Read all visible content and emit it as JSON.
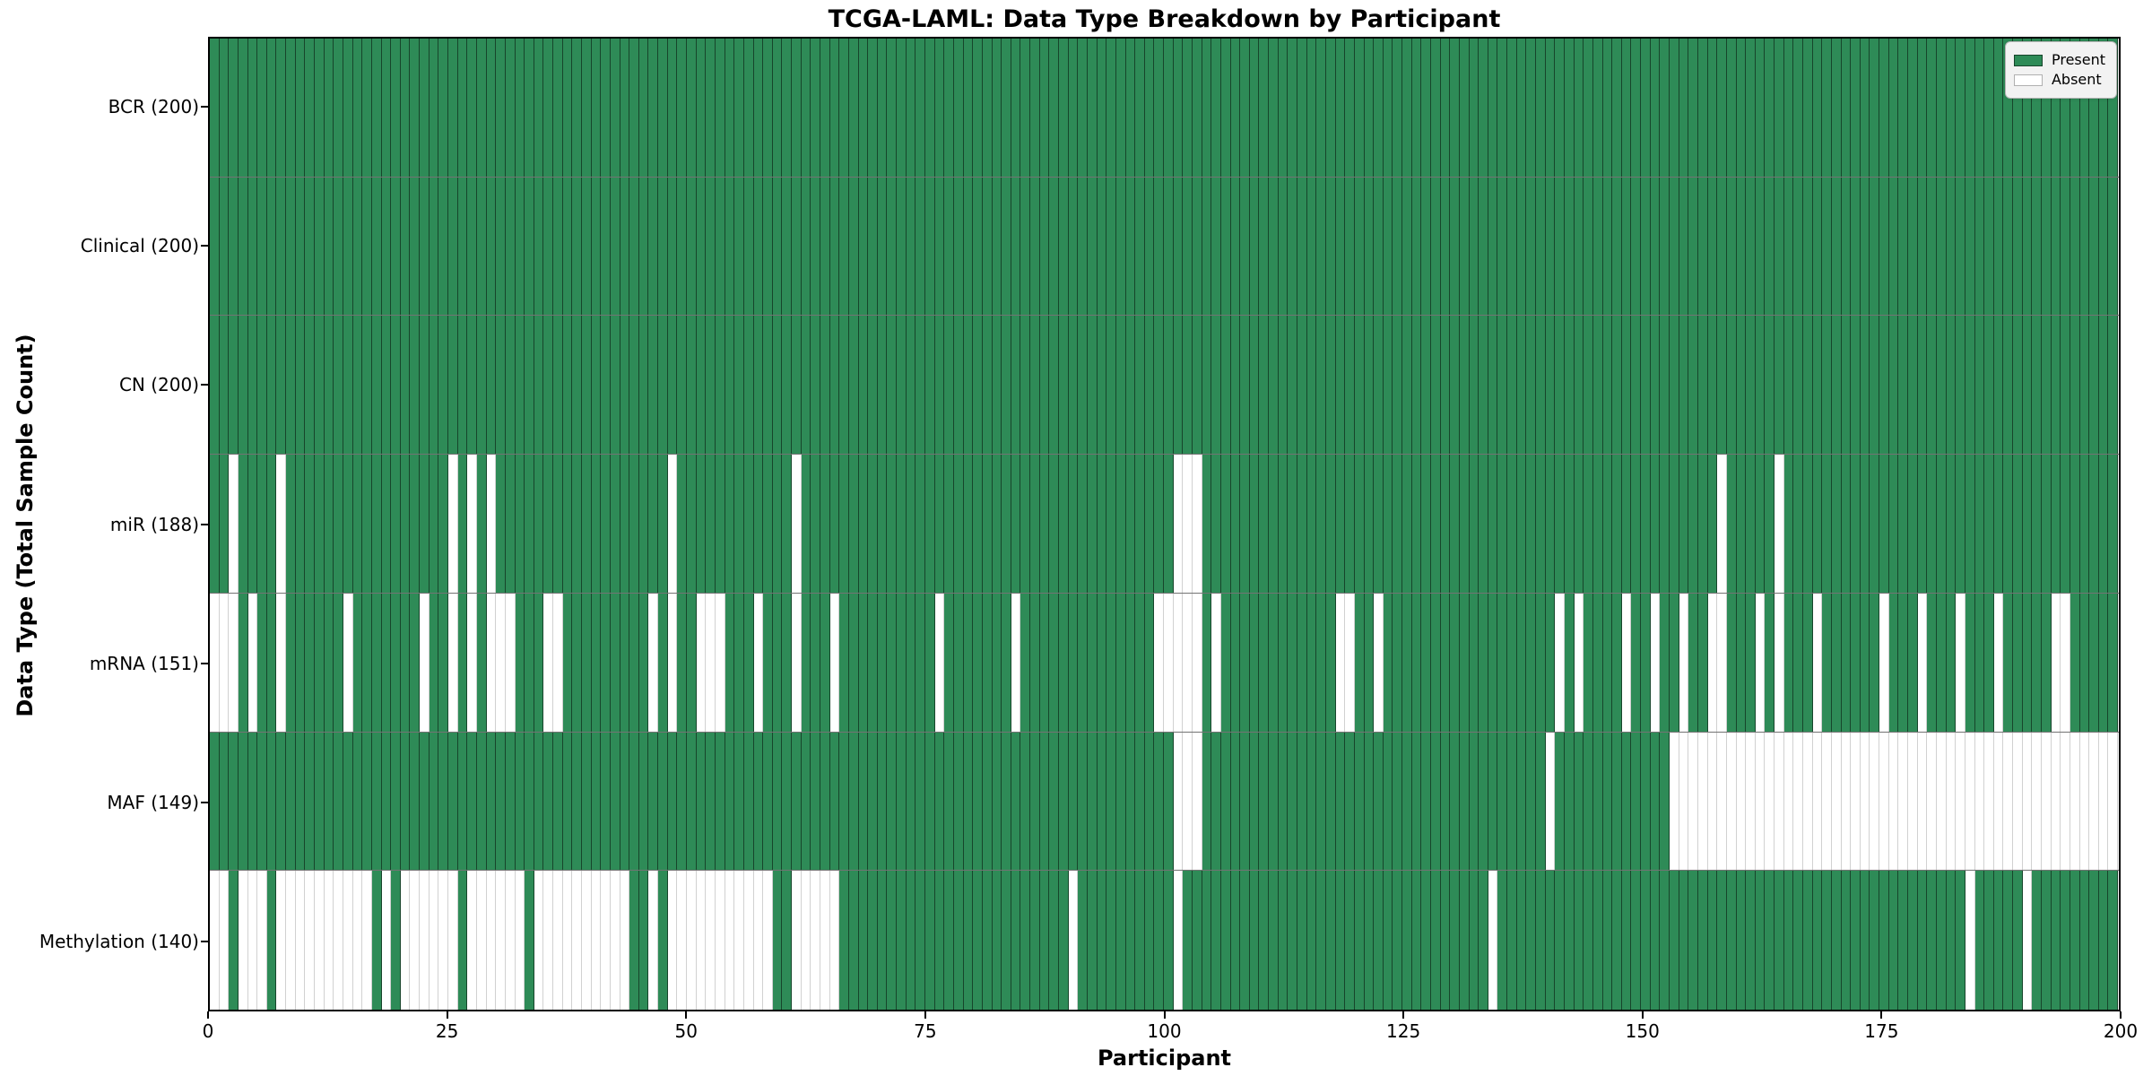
{
  "figure": {
    "title": "TCGA-LAML: Data Type Breakdown by Participant",
    "xlabel": "Participant",
    "ylabel": "Data Type (Total Sample Count)"
  },
  "legend": {
    "items": [
      {
        "label": "Present",
        "color": "#2e8b57"
      },
      {
        "label": "Absent",
        "color": "#ffffff"
      }
    ],
    "position": "upper right"
  },
  "chart_data": {
    "type": "heatmap",
    "title": "TCGA-LAML: Data Type Breakdown by Participant",
    "xlabel": "Participant",
    "ylabel": "Data Type (Total Sample Count)",
    "x_range": [
      0,
      200
    ],
    "n_participants": 200,
    "xticks": [
      0,
      25,
      50,
      75,
      100,
      125,
      150,
      175,
      200
    ],
    "grid": false,
    "legend_position": "upper right",
    "colors": {
      "present": "#2e8b57",
      "absent": "#ffffff"
    },
    "rows": [
      {
        "label": "BCR (200)",
        "name": "BCR",
        "total": 200,
        "absent": []
      },
      {
        "label": "Clinical (200)",
        "name": "Clinical",
        "total": 200,
        "absent": []
      },
      {
        "label": "CN (200)",
        "name": "CN",
        "total": 200,
        "absent": []
      },
      {
        "label": "miR (188)",
        "name": "miR",
        "total": 188,
        "absent": [
          2,
          7,
          25,
          27,
          29,
          48,
          61,
          101,
          102,
          103,
          158,
          164
        ]
      },
      {
        "label": "mRNA (151)",
        "name": "mRNA",
        "total": 151,
        "absent": [
          0,
          1,
          2,
          4,
          7,
          14,
          22,
          25,
          27,
          29,
          30,
          31,
          35,
          36,
          46,
          48,
          51,
          52,
          53,
          57,
          61,
          65,
          76,
          84,
          99,
          100,
          101,
          102,
          103,
          105,
          118,
          119,
          122,
          141,
          143,
          148,
          151,
          154,
          157,
          158,
          162,
          164,
          168,
          175,
          179,
          183,
          187,
          193,
          194
        ]
      },
      {
        "label": "MAF (149)",
        "name": "MAF",
        "total": 149,
        "absent": [
          101,
          102,
          103,
          140,
          153,
          154,
          155,
          156,
          157,
          158,
          159,
          160,
          161,
          162,
          163,
          164,
          165,
          166,
          167,
          168,
          169,
          170,
          171,
          172,
          173,
          174,
          175,
          176,
          177,
          178,
          179,
          180,
          181,
          182,
          183,
          184,
          185,
          186,
          187,
          188,
          189,
          190,
          191,
          192,
          193,
          194,
          195,
          196,
          197,
          198,
          199
        ]
      },
      {
        "label": "Methylation (140)",
        "name": "Methylation",
        "total": 140,
        "absent": [
          0,
          1,
          3,
          4,
          5,
          7,
          8,
          9,
          10,
          11,
          12,
          13,
          14,
          15,
          16,
          18,
          20,
          21,
          22,
          23,
          24,
          25,
          27,
          28,
          29,
          30,
          31,
          32,
          34,
          35,
          36,
          37,
          38,
          39,
          40,
          41,
          42,
          43,
          46,
          48,
          49,
          50,
          51,
          52,
          53,
          54,
          55,
          56,
          57,
          58,
          61,
          62,
          63,
          64,
          65,
          90,
          101,
          134,
          184,
          190
        ]
      }
    ]
  }
}
